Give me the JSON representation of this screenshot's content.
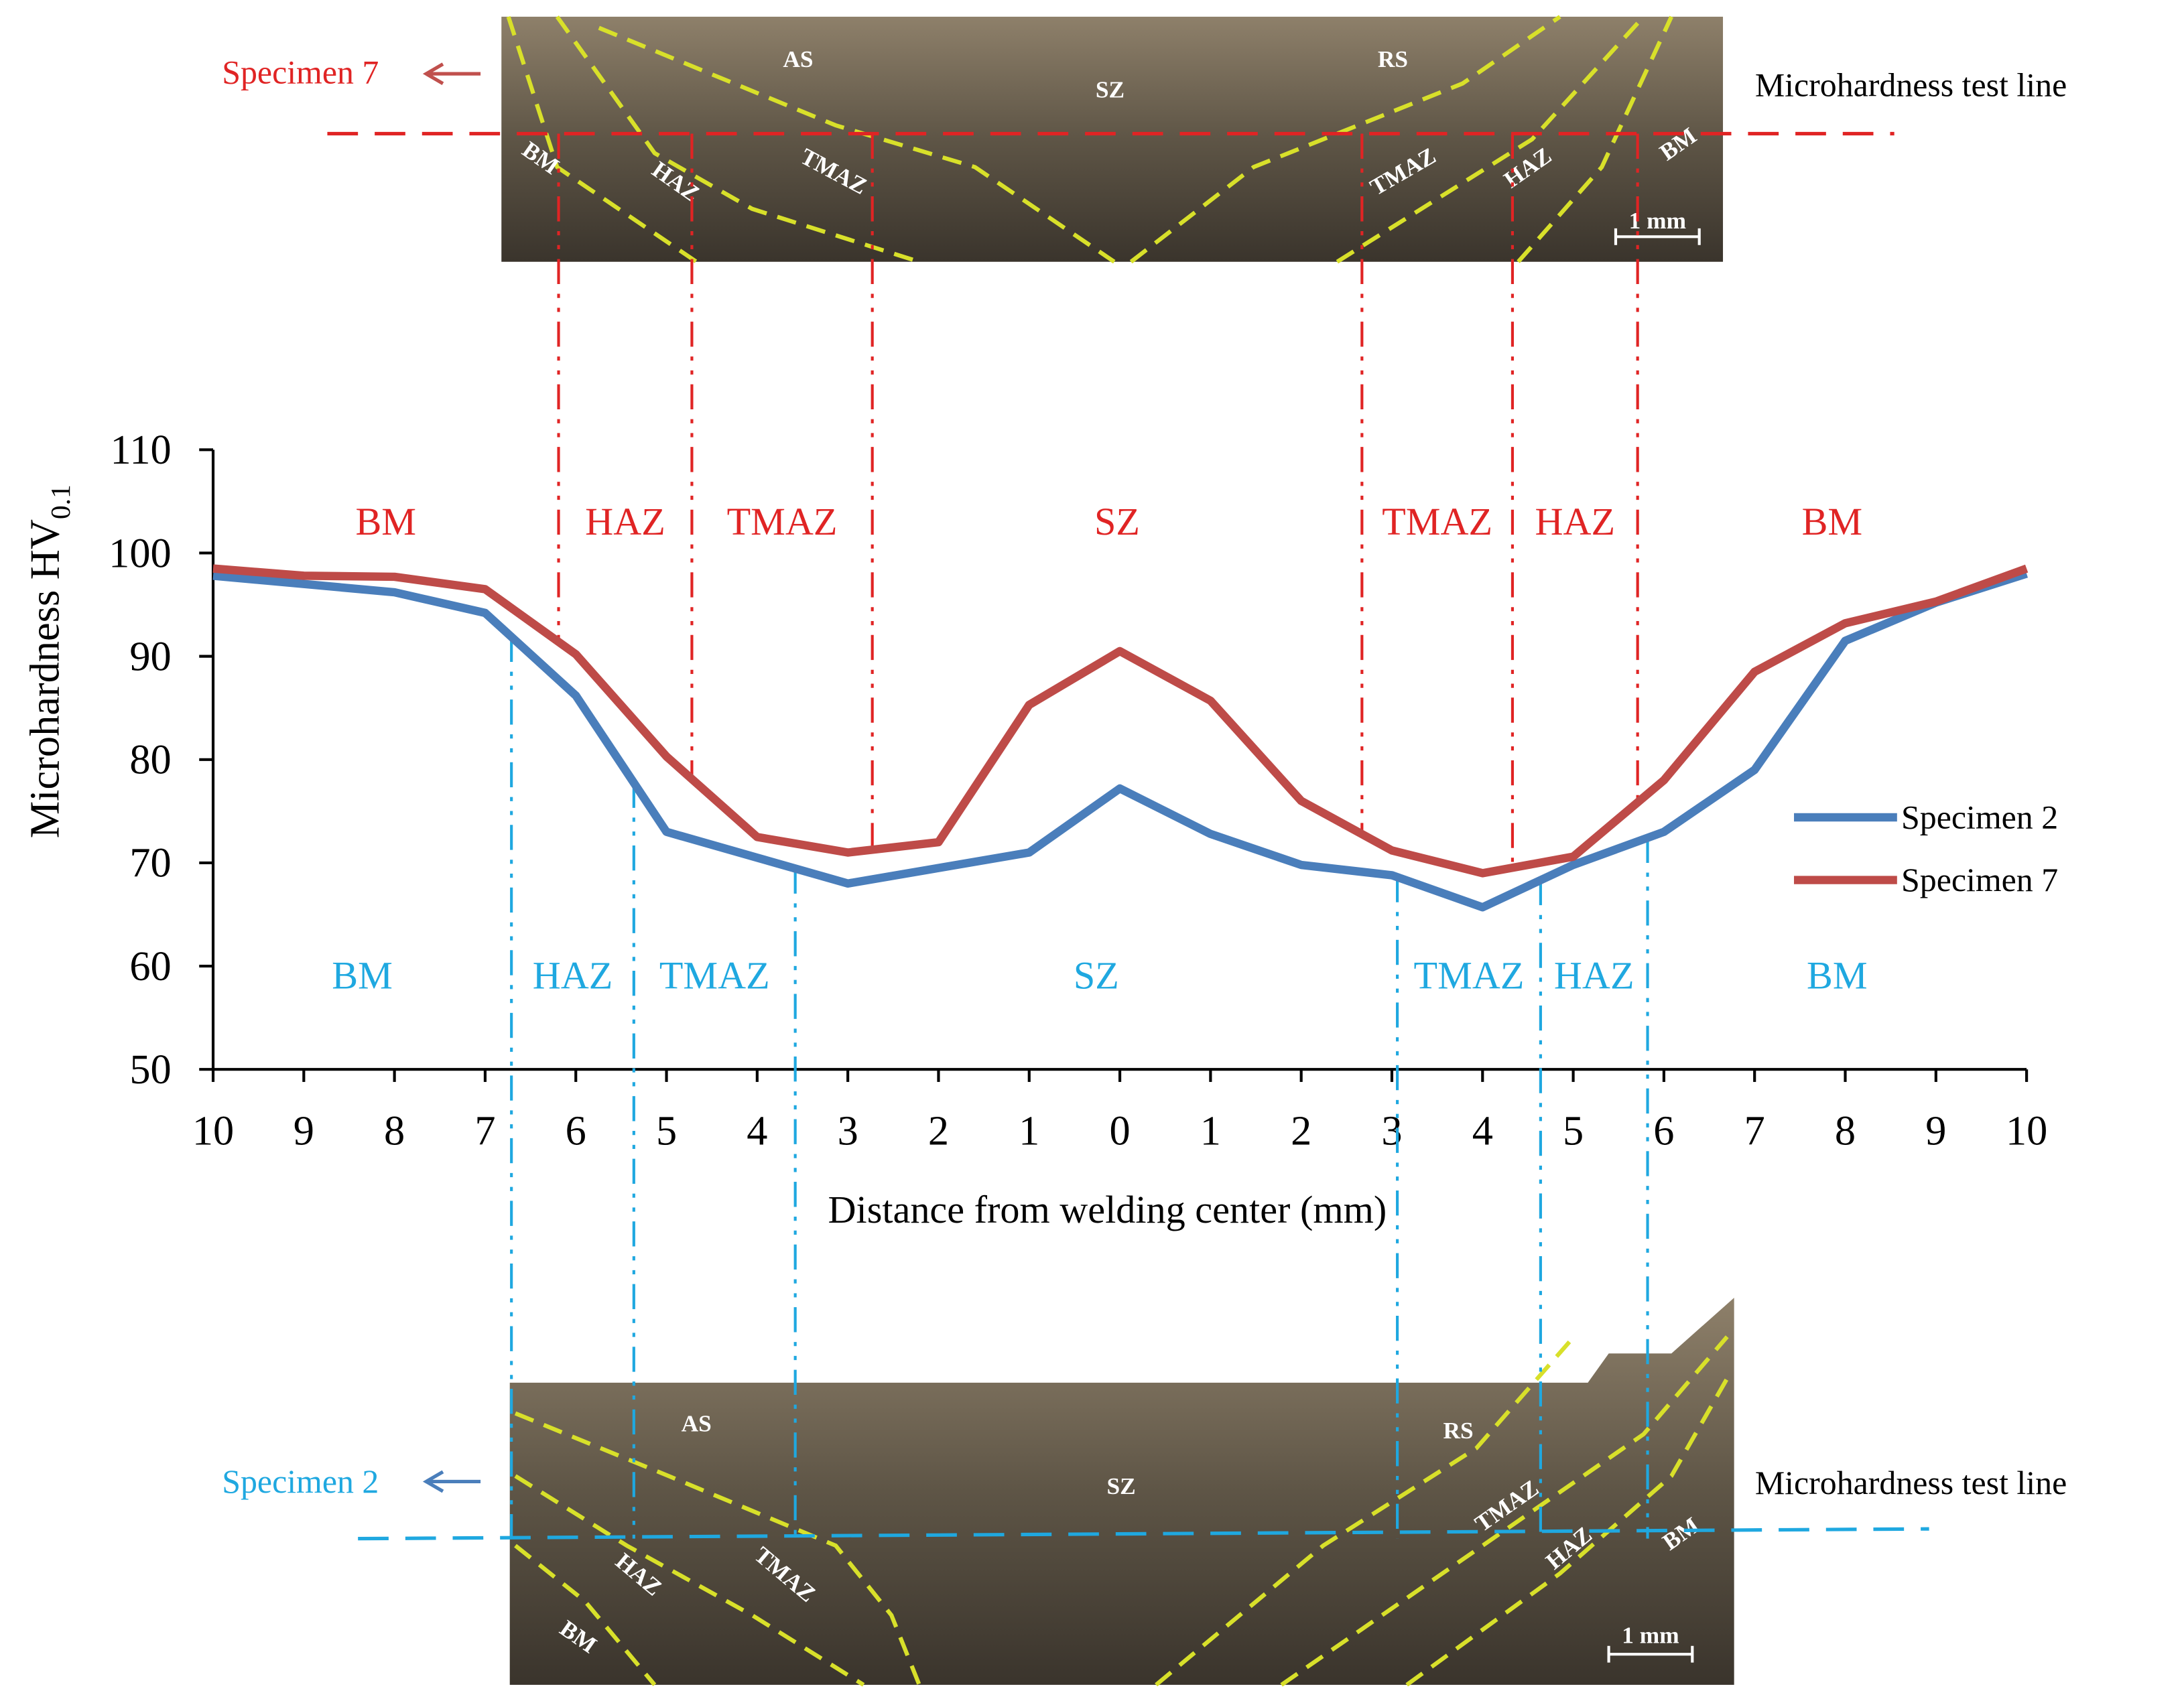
{
  "chart_data": {
    "type": "line",
    "xlabel": "Distance from welding center (mm)",
    "ylabel": "Microhardness HV",
    "ylabel_sub": "0.1",
    "x": [
      -10,
      -9,
      -8,
      -7,
      -6,
      -5,
      -4,
      -3,
      -2,
      -1,
      0,
      1,
      2,
      3,
      4,
      5,
      6,
      7,
      8,
      9,
      10
    ],
    "series": [
      {
        "name": "Specimen 2",
        "color": "#4a7ebb",
        "values": [
          97.8,
          97,
          96.2,
          94.2,
          86.2,
          73,
          70.5,
          68,
          69.5,
          71,
          77.2,
          72.8,
          69.8,
          68.8,
          65.7,
          69.8,
          73,
          79,
          91.5,
          95.2,
          98
        ]
      },
      {
        "name": "Specimen 7",
        "color": "#be4b48",
        "values": [
          98.5,
          97.8,
          97.7,
          96.5,
          90.2,
          80.3,
          72.5,
          71,
          72,
          85.3,
          90.5,
          85.7,
          76,
          71.2,
          69,
          70.6,
          78,
          88.5,
          93.2,
          95.3,
          98.5
        ]
      }
    ],
    "xlim": [
      -10,
      10
    ],
    "xticks": [
      {
        "value": -10,
        "label": "10"
      },
      {
        "value": -9,
        "label": "9"
      },
      {
        "value": -8,
        "label": "8"
      },
      {
        "value": -7,
        "label": "7"
      },
      {
        "value": -6,
        "label": "6"
      },
      {
        "value": -5,
        "label": "5"
      },
      {
        "value": -4,
        "label": "4"
      },
      {
        "value": -3,
        "label": "3"
      },
      {
        "value": -2,
        "label": "2"
      },
      {
        "value": -1,
        "label": "1"
      },
      0,
      1,
      2,
      3,
      4,
      5,
      6,
      7,
      8,
      9,
      10
    ],
    "ylim": [
      50,
      110
    ],
    "yticks": [
      50,
      60,
      70,
      80,
      90,
      100,
      110
    ],
    "grid": false,
    "legend": "right",
    "zones": [
      {
        "specimen": "Specimen 7",
        "color": "#e02424",
        "labels": [
          "BM",
          "HAZ",
          "TMAZ",
          "SZ",
          "TMAZ",
          "HAZ",
          "BM"
        ],
        "boundaries": [
          -6.19,
          -4.72,
          -2.73,
          2.67,
          4.33,
          5.71
        ]
      },
      {
        "specimen": "Specimen 2",
        "color": "#1fa8e0",
        "labels": [
          "BM",
          "HAZ",
          "TMAZ",
          "SZ",
          "TMAZ",
          "HAZ",
          "BM"
        ],
        "boundaries": [
          -6.71,
          -5.36,
          -3.58,
          3.06,
          4.64,
          5.82
        ]
      }
    ]
  },
  "micrographs": [
    {
      "specimen": "Specimen 7",
      "test_line": "Microhardness test line",
      "labels": [
        "AS",
        "SZ",
        "RS",
        "BM",
        "HAZ",
        "TMAZ",
        "TMAZ",
        "HAZ",
        "BM"
      ],
      "scale": "1 mm"
    },
    {
      "specimen": "Specimen 2",
      "test_line": "Microhardness test line",
      "labels": [
        "AS",
        "SZ",
        "RS",
        "HAZ",
        "TMAZ",
        "BM",
        "TMAZ",
        "HAZ",
        "BM"
      ],
      "scale": "1 mm"
    }
  ]
}
